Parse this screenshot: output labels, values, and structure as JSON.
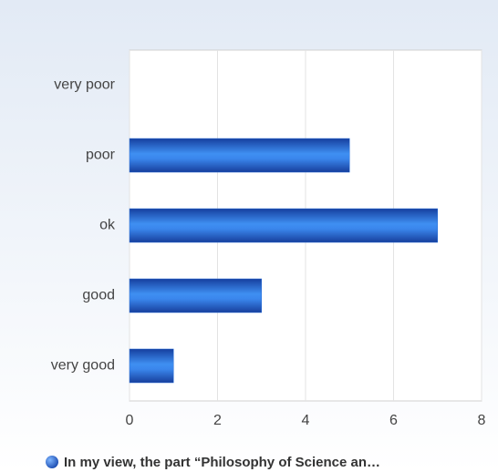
{
  "chart_data": {
    "type": "bar",
    "orientation": "horizontal",
    "categories": [
      "very poor",
      "poor",
      "ok",
      "good",
      "very good"
    ],
    "series": [
      {
        "name": "In my view, the part “Philosophy of Science an…",
        "color": "#2a6fd8",
        "values": [
          0,
          5,
          7,
          3,
          1
        ]
      }
    ],
    "xlim": [
      0,
      8
    ],
    "xticks": [
      0,
      2,
      4,
      6,
      8
    ],
    "grid": true,
    "legend": "bottom"
  }
}
